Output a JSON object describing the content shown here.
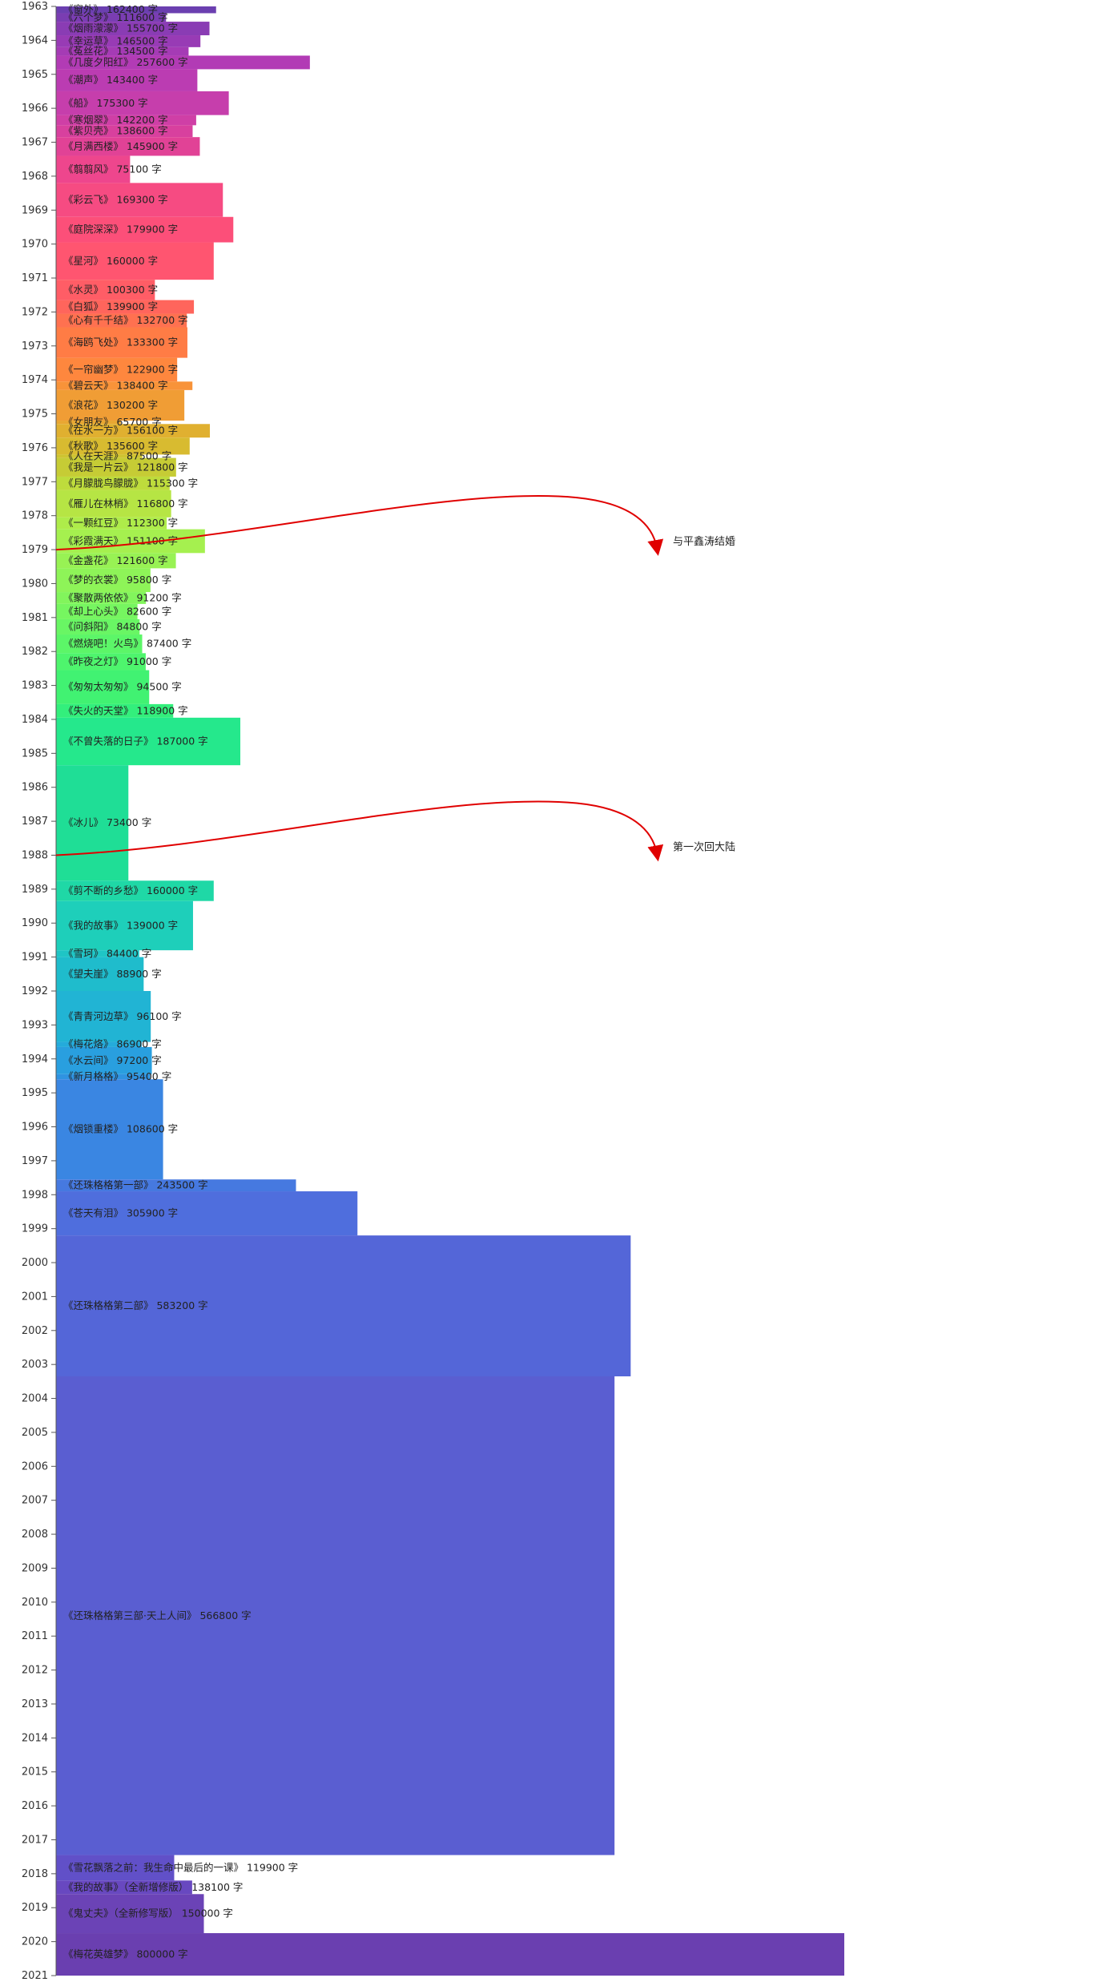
{
  "chart_data": {
    "type": "bar",
    "orientation": "horizontal-timeline",
    "title": "",
    "xlabel": "",
    "ylabel": "",
    "axis": {
      "start_year": 1963,
      "end_year": 2021,
      "ticks": [
        "1963",
        "1964",
        "1965",
        "1966",
        "1967",
        "1968",
        "1969",
        "1970",
        "1971",
        "1972",
        "1973",
        "1974",
        "1975",
        "1976",
        "1977",
        "1978",
        "1979",
        "1980",
        "1981",
        "1982",
        "1983",
        "1984",
        "1985",
        "1986",
        "1987",
        "1988",
        "1989",
        "1990",
        "1991",
        "1992",
        "1993",
        "1994",
        "1995",
        "1996",
        "1997",
        "1998",
        "1999",
        "2000",
        "2001",
        "2002",
        "2003",
        "2004",
        "2005",
        "2006",
        "2007",
        "2008",
        "2009",
        "2010",
        "2011",
        "2012",
        "2013",
        "2014",
        "2015",
        "2016",
        "2017",
        "2018",
        "2019",
        "2020",
        "2021"
      ]
    },
    "xlim": [
      0,
      800000
    ],
    "grid": false,
    "legend": "none",
    "unit": "字",
    "books": [
      {
        "title": "《窗外》",
        "chars": 162400,
        "start": 1963.0,
        "end": 1963.2,
        "color": "#6b3fb0"
      },
      {
        "title": "《六个梦》",
        "chars": 111600,
        "start": 1963.2,
        "end": 1963.45,
        "color": "#7a3db2"
      },
      {
        "title": "《烟雨濛濛》",
        "chars": 155700,
        "start": 1963.45,
        "end": 1963.85,
        "color": "#8a3cb4"
      },
      {
        "title": "《幸运草》",
        "chars": 146500,
        "start": 1963.85,
        "end": 1964.2,
        "color": "#983bb5"
      },
      {
        "title": "《菟丝花》",
        "chars": 134500,
        "start": 1964.2,
        "end": 1964.45,
        "color": "#a53bb5"
      },
      {
        "title": "《几度夕阳红》",
        "chars": 257600,
        "start": 1964.45,
        "end": 1964.85,
        "color": "#b23bb5"
      },
      {
        "title": "《潮声》",
        "chars": 143400,
        "start": 1964.85,
        "end": 1965.5,
        "color": "#bb3cb2"
      },
      {
        "title": "《船》",
        "chars": 175300,
        "start": 1965.5,
        "end": 1966.2,
        "color": "#c63eac"
      },
      {
        "title": "《寒烟翠》",
        "chars": 142200,
        "start": 1966.2,
        "end": 1966.5,
        "color": "#cf3fa6"
      },
      {
        "title": "《紫贝壳》",
        "chars": 138600,
        "start": 1966.5,
        "end": 1966.85,
        "color": "#d8409e"
      },
      {
        "title": "《月满西楼》",
        "chars": 145900,
        "start": 1966.85,
        "end": 1967.4,
        "color": "#e14296"
      },
      {
        "title": "《翦翦风》",
        "chars": 75100,
        "start": 1967.4,
        "end": 1968.2,
        "color": "#ee468d"
      },
      {
        "title": "《彩云飞》",
        "chars": 169300,
        "start": 1968.2,
        "end": 1969.2,
        "color": "#f64b82"
      },
      {
        "title": "《庭院深深》",
        "chars": 179900,
        "start": 1969.2,
        "end": 1969.95,
        "color": "#fc4f79"
      },
      {
        "title": "《星河》",
        "chars": 160000,
        "start": 1969.95,
        "end": 1971.05,
        "color": "#ff5570"
      },
      {
        "title": "《水灵》",
        "chars": 100300,
        "start": 1971.05,
        "end": 1971.65,
        "color": "#ff5d66"
      },
      {
        "title": "《白狐》",
        "chars": 139900,
        "start": 1971.65,
        "end": 1972.05,
        "color": "#ff655c"
      },
      {
        "title": "《心有千千结》",
        "chars": 132700,
        "start": 1972.05,
        "end": 1972.45,
        "color": "#ff7150"
      },
      {
        "title": "《海鸥飞处》",
        "chars": 133300,
        "start": 1972.45,
        "end": 1973.35,
        "color": "#ff7c45"
      },
      {
        "title": "《一帘幽梦》",
        "chars": 122900,
        "start": 1973.35,
        "end": 1974.05,
        "color": "#fe873e"
      },
      {
        "title": "《碧云天》",
        "chars": 138400,
        "start": 1974.05,
        "end": 1974.3,
        "color": "#f89339"
      },
      {
        "title": "《浪花》",
        "chars": 130200,
        "start": 1974.3,
        "end": 1975.2,
        "color": "#f09d35"
      },
      {
        "title": "《女朋友》",
        "chars": 65700,
        "start": 1975.2,
        "end": 1975.3,
        "color": "#e8a732"
      },
      {
        "title": "《在水一方》",
        "chars": 156100,
        "start": 1975.3,
        "end": 1975.7,
        "color": "#e0b030"
      },
      {
        "title": "《秋歌》",
        "chars": 135600,
        "start": 1975.7,
        "end": 1976.2,
        "color": "#d8bb30"
      },
      {
        "title": "《人在天涯》",
        "chars": 87500,
        "start": 1976.2,
        "end": 1976.3,
        "color": "#cec431"
      },
      {
        "title": "《我是一片云》",
        "chars": 121800,
        "start": 1976.3,
        "end": 1976.85,
        "color": "#c6cc35"
      },
      {
        "title": "《月朦胧鸟朦胧》",
        "chars": 115300,
        "start": 1976.85,
        "end": 1977.25,
        "color": "#bedc3c"
      },
      {
        "title": "《雁儿在林梢》",
        "chars": 116800,
        "start": 1977.25,
        "end": 1978.05,
        "color": "#b6e544"
      },
      {
        "title": "《一颗红豆》",
        "chars": 112300,
        "start": 1978.05,
        "end": 1978.4,
        "color": "#aeec4a"
      },
      {
        "title": "《彩霞满天》",
        "chars": 151100,
        "start": 1978.4,
        "end": 1979.1,
        "color": "#a5f04f"
      },
      {
        "title": "《金盏花》",
        "chars": 121600,
        "start": 1979.1,
        "end": 1979.55,
        "color": "#98f254"
      },
      {
        "title": "《梦的衣裳》",
        "chars": 95800,
        "start": 1979.55,
        "end": 1980.25,
        "color": "#8ef458"
      },
      {
        "title": "《聚散两依依》",
        "chars": 91200,
        "start": 1980.25,
        "end": 1980.6,
        "color": "#82f55c"
      },
      {
        "title": "《却上心头》",
        "chars": 82600,
        "start": 1980.6,
        "end": 1981.05,
        "color": "#76f660"
      },
      {
        "title": "《问斜阳》",
        "chars": 84800,
        "start": 1981.05,
        "end": 1981.5,
        "color": "#69f664"
      },
      {
        "title": "《燃烧吧！火鸟》",
        "chars": 87400,
        "start": 1981.5,
        "end": 1982.05,
        "color": "#5cf668"
      },
      {
        "title": "《昨夜之灯》",
        "chars": 91000,
        "start": 1982.05,
        "end": 1982.55,
        "color": "#4ef56d"
      },
      {
        "title": "《匆匆太匆匆》",
        "chars": 94500,
        "start": 1982.55,
        "end": 1983.55,
        "color": "#41f272"
      },
      {
        "title": "《失火的天堂》",
        "chars": 118900,
        "start": 1983.55,
        "end": 1983.95,
        "color": "#33ef7c"
      },
      {
        "title": "《不曾失落的日子》",
        "chars": 187000,
        "start": 1983.95,
        "end": 1985.35,
        "color": "#25e88c"
      },
      {
        "title": "《冰儿》",
        "chars": 73400,
        "start": 1985.35,
        "end": 1988.75,
        "color": "#1fde96"
      },
      {
        "title": "《剪不断的乡愁》",
        "chars": 160000,
        "start": 1988.75,
        "end": 1989.35,
        "color": "#1fd8a6"
      },
      {
        "title": "《我的故事》",
        "chars": 139000,
        "start": 1989.35,
        "end": 1990.8,
        "color": "#1ecfba"
      },
      {
        "title": "《雪珂》",
        "chars": 84400,
        "start": 1990.8,
        "end": 1991.0,
        "color": "#1fc5c5"
      },
      {
        "title": "《望夫崖》",
        "chars": 88900,
        "start": 1991.0,
        "end": 1992.0,
        "color": "#1fbccc"
      },
      {
        "title": "《青青河边草》",
        "chars": 96100,
        "start": 1992.0,
        "end": 1993.5,
        "color": "#21b4d4"
      },
      {
        "title": "《梅花烙》",
        "chars": 86900,
        "start": 1993.5,
        "end": 1993.65,
        "color": "#24abdb"
      },
      {
        "title": "《水云间》",
        "chars": 97200,
        "start": 1993.65,
        "end": 1994.45,
        "color": "#299fdf"
      },
      {
        "title": "《新月格格》",
        "chars": 95400,
        "start": 1994.45,
        "end": 1994.6,
        "color": "#2f93e1"
      },
      {
        "title": "《烟锁重楼》",
        "chars": 108600,
        "start": 1994.6,
        "end": 1997.55,
        "color": "#3a86e2"
      },
      {
        "title": "《还珠格格第一部》",
        "chars": 243500,
        "start": 1997.55,
        "end": 1997.9,
        "color": "#4679e0"
      },
      {
        "title": "《苍天有泪》",
        "chars": 305900,
        "start": 1997.9,
        "end": 1999.2,
        "color": "#4f6edd"
      },
      {
        "title": "《还珠格格第二部》",
        "chars": 583200,
        "start": 1999.2,
        "end": 2003.35,
        "color": "#5466d8"
      },
      {
        "title": "《还珠格格第三部·天上人间》",
        "chars": 566800,
        "start": 2003.35,
        "end": 2017.45,
        "color": "#5a5ed1"
      },
      {
        "title": "《雪花飘落之前：我生命中最后的一课》",
        "chars": 119900,
        "start": 2017.45,
        "end": 2018.2,
        "color": "#6150c8"
      },
      {
        "title": "《我的故事》（全新增修版）",
        "chars": 138100,
        "start": 2018.2,
        "end": 2018.6,
        "color": "#6848c0"
      },
      {
        "title": "《鬼丈夫》（全新修写版）",
        "chars": 150000,
        "start": 2018.6,
        "end": 2019.75,
        "color": "#6b43b6"
      },
      {
        "title": "《梅花英雄梦》",
        "chars": 800000,
        "start": 2019.75,
        "end": 2021.0,
        "color": "#6a3fb0"
      }
    ],
    "annotations": [
      {
        "text": "与平鑫涛结婚",
        "year": 1979.0
      },
      {
        "text": "第一次回大陆",
        "year": 1988.0
      }
    ],
    "annotation_color": "#e00000"
  }
}
